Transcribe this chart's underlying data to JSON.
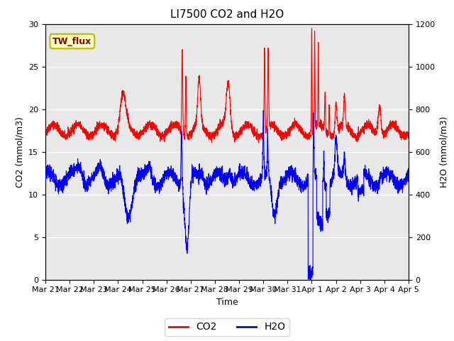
{
  "title": "LI7500 CO2 and H2O",
  "xlabel": "Time",
  "ylabel_left": "CO2 (mmol/m3)",
  "ylabel_right": "H2O (mmol/m3)",
  "ylim_left": [
    0,
    30
  ],
  "ylim_right": [
    0,
    1200
  ],
  "legend_label_co2": "CO2",
  "legend_label_h2o": "H2O",
  "annotation_text": "TW_flux",
  "co2_color": "#FF0000",
  "h2o_color": "#0000FF",
  "background_color": "#E8E8E8",
  "title_fontsize": 11,
  "axis_fontsize": 9,
  "tick_fontsize": 8,
  "x_tick_labels": [
    "Mar 21",
    "Mar 22",
    "Mar 23",
    "Mar 24",
    "Mar 25",
    "Mar 26",
    "Mar 27",
    "Mar 28",
    "Mar 29",
    "Mar 30",
    "Mar 31",
    "Apr 1",
    "Apr 2",
    "Apr 3",
    "Apr 4",
    "Apr 5"
  ],
  "n_points": 3360
}
